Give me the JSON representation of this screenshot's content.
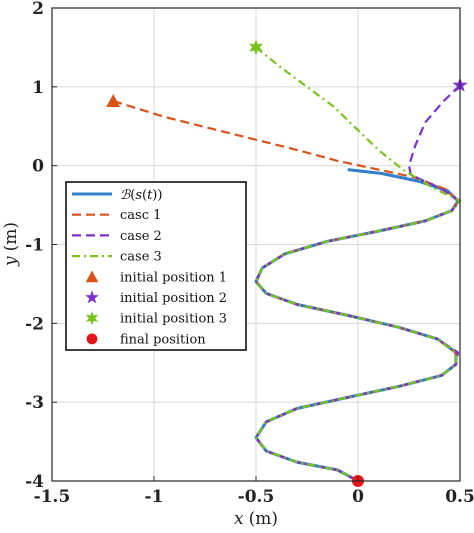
{
  "chart_data": {
    "type": "line",
    "title": "",
    "xlabel": "x (m)",
    "xlabel_parts": {
      "var": "x",
      "unit": "(m)"
    },
    "ylabel": "y (m)",
    "ylabel_parts": {
      "var": "y",
      "unit": "(m)"
    },
    "xlim": [
      -1.5,
      0.5
    ],
    "ylim": [
      -4,
      2
    ],
    "xticks": [
      -1.5,
      -1,
      -0.5,
      0,
      0.5
    ],
    "xtick_labels": [
      "-1.5",
      "-1",
      "-0.5",
      "0",
      "0.5"
    ],
    "yticks": [
      -4,
      -3,
      -2,
      -1,
      0,
      1,
      2
    ],
    "ytick_labels": [
      "-4",
      "-3",
      "-2",
      "-1",
      "0",
      "1",
      "2"
    ],
    "grid": true,
    "legend_position": "center-left",
    "series": [
      {
        "name": "B(s(t))",
        "color": "#2f7fc9",
        "style": "solid",
        "points": [
          [
            -0.05,
            -0.05
          ],
          [
            0.12,
            -0.1
          ],
          [
            0.3,
            -0.2
          ],
          [
            0.44,
            -0.32
          ],
          [
            0.49,
            -0.45
          ],
          [
            0.46,
            -0.57
          ],
          [
            0.33,
            -0.7
          ],
          [
            0.1,
            -0.83
          ],
          [
            -0.15,
            -0.96
          ],
          [
            -0.36,
            -1.12
          ],
          [
            -0.47,
            -1.3
          ],
          [
            -0.5,
            -1.47
          ],
          [
            -0.45,
            -1.62
          ],
          [
            -0.3,
            -1.76
          ],
          [
            -0.05,
            -1.9
          ],
          [
            0.2,
            -2.05
          ],
          [
            0.39,
            -2.2
          ],
          [
            0.48,
            -2.37
          ],
          [
            0.48,
            -2.52
          ],
          [
            0.41,
            -2.66
          ],
          [
            0.2,
            -2.8
          ],
          [
            -0.05,
            -2.94
          ],
          [
            -0.3,
            -3.08
          ],
          [
            -0.45,
            -3.25
          ],
          [
            -0.5,
            -3.45
          ],
          [
            -0.45,
            -3.62
          ],
          [
            -0.3,
            -3.76
          ],
          [
            -0.1,
            -3.86
          ],
          [
            0.0,
            -4.0
          ]
        ]
      },
      {
        "name": "casc 1",
        "color": "#d95319",
        "style": "dashed",
        "points": [
          [
            -1.2,
            0.82
          ],
          [
            -0.95,
            0.62
          ],
          [
            -0.72,
            0.47
          ],
          [
            -0.5,
            0.33
          ],
          [
            -0.3,
            0.2
          ],
          [
            -0.1,
            0.06
          ],
          [
            0.1,
            -0.05
          ],
          [
            0.28,
            -0.15
          ],
          [
            0.43,
            -0.3
          ],
          [
            0.49,
            -0.45
          ],
          [
            0.46,
            -0.57
          ],
          [
            0.33,
            -0.7
          ],
          [
            0.1,
            -0.83
          ],
          [
            -0.15,
            -0.96
          ],
          [
            -0.36,
            -1.12
          ],
          [
            -0.47,
            -1.3
          ],
          [
            -0.5,
            -1.47
          ],
          [
            -0.45,
            -1.62
          ],
          [
            -0.3,
            -1.76
          ],
          [
            -0.05,
            -1.9
          ],
          [
            0.2,
            -2.05
          ],
          [
            0.39,
            -2.2
          ],
          [
            0.48,
            -2.37
          ],
          [
            0.48,
            -2.52
          ],
          [
            0.41,
            -2.66
          ],
          [
            0.2,
            -2.8
          ],
          [
            -0.05,
            -2.94
          ],
          [
            -0.3,
            -3.08
          ],
          [
            -0.45,
            -3.25
          ],
          [
            -0.5,
            -3.45
          ],
          [
            -0.45,
            -3.62
          ],
          [
            -0.3,
            -3.76
          ],
          [
            -0.1,
            -3.86
          ],
          [
            0.0,
            -4.0
          ]
        ]
      },
      {
        "name": "case 2",
        "color": "#7e2fd0",
        "style": "dashed",
        "points": [
          [
            0.5,
            1.02
          ],
          [
            0.42,
            0.82
          ],
          [
            0.33,
            0.55
          ],
          [
            0.28,
            0.25
          ],
          [
            0.25,
            0.0
          ],
          [
            0.26,
            -0.12
          ],
          [
            0.4,
            -0.28
          ],
          [
            0.5,
            -0.45
          ],
          [
            0.46,
            -0.57
          ],
          [
            0.33,
            -0.7
          ],
          [
            0.1,
            -0.83
          ],
          [
            -0.15,
            -0.96
          ],
          [
            -0.36,
            -1.12
          ],
          [
            -0.47,
            -1.3
          ],
          [
            -0.5,
            -1.47
          ],
          [
            -0.45,
            -1.62
          ],
          [
            -0.3,
            -1.76
          ],
          [
            -0.05,
            -1.9
          ],
          [
            0.2,
            -2.05
          ],
          [
            0.39,
            -2.2
          ],
          [
            0.49,
            -2.37
          ],
          [
            0.48,
            -2.52
          ],
          [
            0.41,
            -2.66
          ],
          [
            0.2,
            -2.8
          ],
          [
            -0.05,
            -2.94
          ],
          [
            -0.3,
            -3.08
          ],
          [
            -0.45,
            -3.25
          ],
          [
            -0.5,
            -3.45
          ],
          [
            -0.45,
            -3.62
          ],
          [
            -0.3,
            -3.76
          ],
          [
            -0.1,
            -3.86
          ],
          [
            0.0,
            -4.0
          ]
        ]
      },
      {
        "name": "case 3",
        "color": "#77c41c",
        "style": "dashdot",
        "points": [
          [
            -0.5,
            1.5
          ],
          [
            -0.38,
            1.25
          ],
          [
            -0.25,
            1.0
          ],
          [
            -0.12,
            0.75
          ],
          [
            0.0,
            0.45
          ],
          [
            0.1,
            0.2
          ],
          [
            0.22,
            -0.05
          ],
          [
            0.36,
            -0.27
          ],
          [
            0.5,
            -0.45
          ],
          [
            0.46,
            -0.57
          ],
          [
            0.33,
            -0.7
          ],
          [
            0.1,
            -0.83
          ],
          [
            -0.15,
            -0.96
          ],
          [
            -0.36,
            -1.12
          ],
          [
            -0.47,
            -1.3
          ],
          [
            -0.5,
            -1.47
          ],
          [
            -0.45,
            -1.62
          ],
          [
            -0.3,
            -1.76
          ],
          [
            -0.05,
            -1.9
          ],
          [
            0.2,
            -2.05
          ],
          [
            0.39,
            -2.2
          ],
          [
            0.48,
            -2.37
          ],
          [
            0.48,
            -2.52
          ],
          [
            0.41,
            -2.66
          ],
          [
            0.2,
            -2.8
          ],
          [
            -0.05,
            -2.94
          ],
          [
            -0.3,
            -3.08
          ],
          [
            -0.45,
            -3.25
          ],
          [
            -0.5,
            -3.45
          ],
          [
            -0.45,
            -3.62
          ],
          [
            -0.3,
            -3.76
          ],
          [
            -0.1,
            -3.86
          ],
          [
            0.0,
            -4.0
          ]
        ]
      }
    ],
    "markers": [
      {
        "name": "initial position 1",
        "shape": "triangle",
        "color": "#d95319",
        "x": -1.2,
        "y": 0.82
      },
      {
        "name": "initial position 2",
        "shape": "star5",
        "color": "#7e2fd0",
        "x": 0.5,
        "y": 1.02
      },
      {
        "name": "initial position 3",
        "shape": "star6",
        "color": "#77c41c",
        "x": -0.5,
        "y": 1.5
      },
      {
        "name": "final position",
        "shape": "circle",
        "color": "#e8141c",
        "x": 0.0,
        "y": -4.0
      }
    ]
  },
  "legend": {
    "bspline_math": {
      "B": "ℬ",
      "open": "(",
      "s": "s",
      "mid": "(",
      "t": "t",
      "close": "))"
    },
    "entries": [
      "casc 1",
      "case 2",
      "case 3",
      "initial position 1",
      "initial position 2",
      "initial position 3",
      "final position"
    ]
  }
}
